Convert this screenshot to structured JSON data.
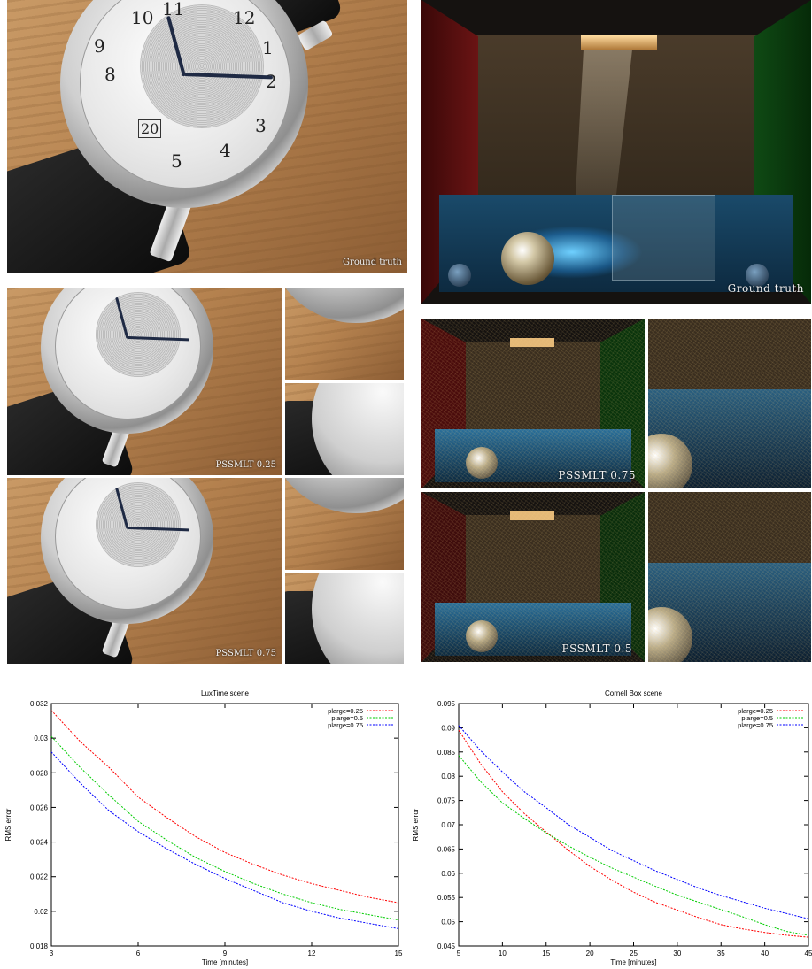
{
  "images": {
    "watch_ground_truth_caption": "Ground truth",
    "watch_pssmlt_025_caption": "PSSMLT 0.25",
    "watch_pssmlt_075_caption": "PSSMLT 0.75",
    "cornell_ground_truth_caption": "Ground truth",
    "cornell_pssmlt_075_caption": "PSSMLT 0.75",
    "cornell_pssmlt_05_caption": "PSSMLT 0.5",
    "watch_numerals": [
      "10",
      "11",
      "12",
      "1",
      "2",
      "3",
      "4",
      "5",
      "8",
      "9",
      "20"
    ]
  },
  "chart_data": [
    {
      "type": "line",
      "title": "LuxTime scene",
      "xlabel": "Time [minutes]",
      "ylabel": "RMS error",
      "xlim": [
        3,
        15
      ],
      "ylim": [
        0.018,
        0.032
      ],
      "xticks": [
        3,
        6,
        9,
        12,
        15
      ],
      "yticks": [
        0.018,
        0.02,
        0.022,
        0.024,
        0.026,
        0.028,
        0.03,
        0.032
      ],
      "grid": false,
      "legend": "top-right",
      "series": [
        {
          "name": "plarge=0.25",
          "color": "#ff0000",
          "x": [
            3,
            4,
            5,
            6,
            7,
            8,
            9,
            10,
            11,
            12,
            13,
            14,
            15
          ],
          "y": [
            0.0316,
            0.0298,
            0.0283,
            0.0266,
            0.0254,
            0.0243,
            0.0234,
            0.0227,
            0.0221,
            0.0216,
            0.0212,
            0.0208,
            0.0205
          ]
        },
        {
          "name": "plarge=0.5",
          "color": "#00cc00",
          "x": [
            3,
            4,
            5,
            6,
            7,
            8,
            9,
            10,
            11,
            12,
            13,
            14,
            15
          ],
          "y": [
            0.0301,
            0.0283,
            0.0267,
            0.0252,
            0.0241,
            0.0231,
            0.0223,
            0.0216,
            0.021,
            0.0205,
            0.0201,
            0.0198,
            0.0195
          ]
        },
        {
          "name": "plarge=0.75",
          "color": "#0000ff",
          "x": [
            3,
            4,
            5,
            6,
            7,
            8,
            9,
            10,
            11,
            12,
            13,
            14,
            15
          ],
          "y": [
            0.0292,
            0.0274,
            0.0258,
            0.0246,
            0.0236,
            0.0227,
            0.0219,
            0.0212,
            0.0205,
            0.02,
            0.0196,
            0.0193,
            0.019
          ]
        }
      ]
    },
    {
      "type": "line",
      "title": "Cornell Box scene",
      "xlabel": "Time [minutes]",
      "ylabel": "RMS error",
      "xlim": [
        5,
        45
      ],
      "ylim": [
        0.045,
        0.095
      ],
      "xticks": [
        5,
        10,
        15,
        20,
        25,
        30,
        35,
        40,
        45
      ],
      "yticks": [
        0.045,
        0.05,
        0.055,
        0.06,
        0.065,
        0.07,
        0.075,
        0.08,
        0.085,
        0.09,
        0.095
      ],
      "grid": false,
      "legend": "top-right",
      "series": [
        {
          "name": "plarge=0.25",
          "color": "#ff0000",
          "x": [
            5,
            7.5,
            10,
            12.5,
            15,
            17.5,
            20,
            22.5,
            25,
            27.5,
            30,
            32.5,
            35,
            37.5,
            40,
            42.5,
            45
          ],
          "y": [
            0.0895,
            0.0826,
            0.0768,
            0.0723,
            0.0685,
            0.0648,
            0.0614,
            0.0586,
            0.0561,
            0.054,
            0.0524,
            0.0508,
            0.0494,
            0.0485,
            0.0478,
            0.0472,
            0.0468
          ]
        },
        {
          "name": "plarge=0.5",
          "color": "#00cc00",
          "x": [
            5,
            7.5,
            10,
            12.5,
            15,
            17.5,
            20,
            22.5,
            25,
            27.5,
            30,
            32.5,
            35,
            37.5,
            40,
            42.5,
            45
          ],
          "y": [
            0.0843,
            0.0789,
            0.0745,
            0.0713,
            0.0683,
            0.0657,
            0.0633,
            0.0611,
            0.0592,
            0.0573,
            0.0555,
            0.054,
            0.0525,
            0.051,
            0.0494,
            0.048,
            0.0472
          ]
        },
        {
          "name": "plarge=0.75",
          "color": "#0000ff",
          "x": [
            5,
            7.5,
            10,
            12.5,
            15,
            17.5,
            20,
            22.5,
            25,
            27.5,
            30,
            32.5,
            35,
            37.5,
            40,
            42.5,
            45
          ],
          "y": [
            0.0905,
            0.0853,
            0.0809,
            0.0768,
            0.0735,
            0.0701,
            0.0674,
            0.0647,
            0.0626,
            0.0605,
            0.0587,
            0.0569,
            0.0554,
            0.0541,
            0.0528,
            0.0517,
            0.0506
          ]
        }
      ]
    }
  ]
}
